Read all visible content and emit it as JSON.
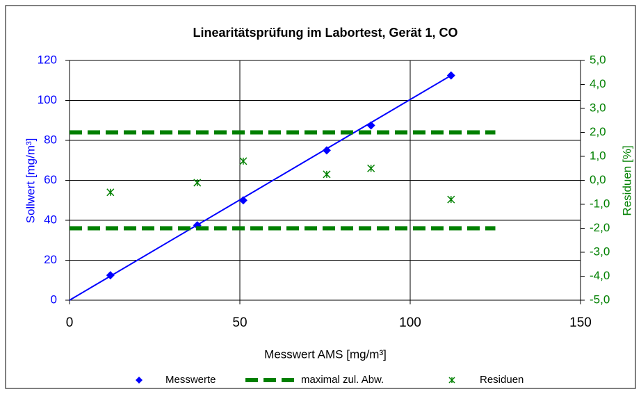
{
  "chart_data": {
    "type": "scatter",
    "title": "Linearitätsprüfung im Labortest, Gerät 1, CO",
    "x_label": "Messwert AMS [mg/m³]",
    "y_label": "Sollwert [mg/m³]",
    "y2_label": "Residuen [%]",
    "xlim": [
      0,
      150
    ],
    "xticks": [
      0,
      50,
      100,
      150
    ],
    "ylim": [
      0,
      120
    ],
    "yticks": [
      0,
      20,
      40,
      60,
      80,
      100,
      120
    ],
    "y2lim": [
      -5,
      5
    ],
    "y2ticks": [
      {
        "value": -5,
        "label": "-5,0"
      },
      {
        "value": -4,
        "label": "-4,0"
      },
      {
        "value": -3,
        "label": "-3,0"
      },
      {
        "value": -2,
        "label": "-2,0"
      },
      {
        "value": -1,
        "label": "-1,0"
      },
      {
        "value": 0,
        "label": "0,0"
      },
      {
        "value": 1,
        "label": "1,0"
      },
      {
        "value": 2,
        "label": "2,0"
      },
      {
        "value": 3,
        "label": "3,0"
      },
      {
        "value": 4,
        "label": "4,0"
      },
      {
        "value": 5,
        "label": "5,0"
      }
    ],
    "grid": true,
    "legend": "bottom",
    "y_color": "#0000ff",
    "y2_color": "#008000",
    "trendline": {
      "color": "#0000ff",
      "x": [
        0,
        112
      ],
      "values": [
        0,
        112.5
      ]
    },
    "series": [
      {
        "name": "Messwerte",
        "marker": "diamond",
        "color": "#0000ff",
        "x": [
          12,
          37.5,
          51,
          75.5,
          88.5,
          112
        ],
        "values": [
          12.5,
          37.5,
          50,
          75,
          87.5,
          112.5
        ]
      },
      {
        "name": "maximal zul. Abw.",
        "marker": "dashed-line",
        "color": "#008000",
        "axis": "y2",
        "x": [
          0,
          125,
          null,
          0,
          125
        ],
        "values": [
          2,
          2,
          null,
          -2,
          -2
        ]
      },
      {
        "name": "Residuen",
        "marker": "star",
        "color": "#008000",
        "axis": "y2",
        "x": [
          12,
          37.5,
          51,
          75.5,
          88.5,
          112
        ],
        "values": [
          -0.5,
          -0.1,
          0.8,
          0.25,
          0.5,
          -0.8
        ]
      }
    ]
  }
}
